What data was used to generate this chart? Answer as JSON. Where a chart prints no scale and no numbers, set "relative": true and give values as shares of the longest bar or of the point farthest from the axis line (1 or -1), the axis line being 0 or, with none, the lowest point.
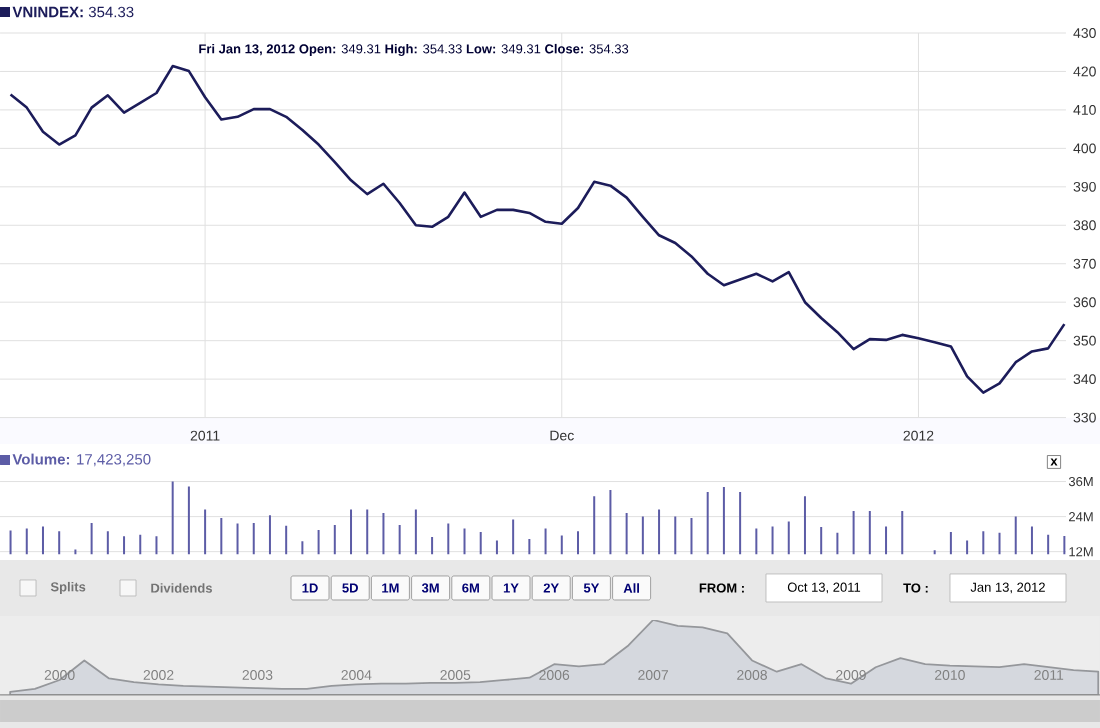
{
  "chart_data": [
    {
      "type": "line",
      "title": "**VNINDEX:** 354.33",
      "annotations": [
        "**Fri Jan 13, 2012**   **Open:**  349.31   **High:**  354.33   **Low:**  349.31   **Close:**  354.33"
      ],
      "categories": [
        null,
        null,
        null,
        null,
        null,
        null,
        null,
        null,
        null,
        null,
        null,
        null,
        "2011",
        null,
        null,
        null,
        null,
        null,
        null,
        null,
        null,
        null,
        null,
        null,
        null,
        null,
        null,
        null,
        null,
        null,
        null,
        null,
        null,
        null,
        "Dec",
        null,
        null,
        null,
        null,
        null,
        null,
        null,
        null,
        null,
        null,
        null,
        null,
        null,
        null,
        null,
        null,
        null,
        null,
        null,
        null,
        null,
        "2012",
        null,
        null,
        null,
        null,
        null,
        null,
        null,
        null,
        null
      ],
      "values": [
        414,
        410.6,
        404.3,
        401,
        403.4,
        410.6,
        413.8,
        409.3,
        411.8,
        414.4,
        421.4,
        420.1,
        413.3,
        407.5,
        408.2,
        410.2,
        410.2,
        408.2,
        404.8,
        401,
        396.4,
        391.7,
        388.1,
        390.8,
        385.8,
        380,
        379.6,
        382.2,
        388.5,
        382.2,
        384,
        384,
        383.2,
        380.9,
        380.4,
        384.5,
        391.3,
        390.3,
        387.2,
        382.2,
        377.4,
        375.4,
        371.9,
        367.4,
        364.4,
        365.9,
        367.4,
        365.4,
        367.8,
        360,
        355.9,
        352.2,
        347.8,
        350.4,
        350.2,
        351.5,
        350.6,
        349.6,
        348.5,
        340.7,
        336.5,
        338.9,
        344.4,
        347.2,
        348,
        354.3
      ],
      "color": "#1c1c5a",
      "ylim": [
        330,
        430
      ],
      "yticks": [
        330,
        340,
        350,
        360,
        370,
        380,
        390,
        400,
        410,
        420,
        430
      ],
      "grid": true
    },
    {
      "type": "bar",
      "title": "**Volume:** 17,423,250",
      "annotations": [
        "x"
      ],
      "categories": [
        null,
        null,
        null,
        null,
        null,
        null,
        null,
        null,
        null,
        null,
        null,
        null,
        null,
        null,
        null,
        null,
        null,
        null,
        null,
        null,
        null,
        null,
        null,
        null,
        null,
        null,
        null,
        null,
        null,
        null,
        null,
        null,
        null,
        null,
        null,
        null,
        null,
        null,
        null,
        null,
        null,
        null,
        null,
        null,
        null,
        null,
        null,
        null,
        null,
        null,
        null,
        null,
        null,
        null,
        null,
        null,
        null,
        null,
        null,
        null,
        null,
        null,
        null,
        null,
        null,
        null
      ],
      "values": [
        19.2,
        19.9,
        20.6,
        19.0,
        12.7,
        21.8,
        19.0,
        17.3,
        17.8,
        17.3,
        36.0,
        34.3,
        26.4,
        23.5,
        21.6,
        21.8,
        24.5,
        20.9,
        15.6,
        19.4,
        21.1,
        26.4,
        26.4,
        25.2,
        21.1,
        26.4,
        17.0,
        21.6,
        19.9,
        18.7,
        15.8,
        23.0,
        16.3,
        19.9,
        17.5,
        19.0,
        31.0,
        33.1,
        25.2,
        24.0,
        26.4,
        24.0,
        23.5,
        32.4,
        34.1,
        32.4,
        19.9,
        20.6,
        22.3,
        31.0,
        20.4,
        18.5,
        25.9,
        25.9,
        20.6,
        25.9,
        null,
        12.5,
        18.7,
        15.8,
        19.0,
        18.5,
        24.0,
        20.6,
        17.8,
        17.4
      ],
      "color": "#5c5ca6",
      "ylim": [
        11,
        37.5
      ],
      "yticks": [
        {
          "value": 12,
          "label": "12M"
        },
        {
          "value": 24,
          "label": "24M"
        },
        {
          "value": 36,
          "label": "36M"
        }
      ],
      "grid": "y",
      "tick_labels": "y"
    },
    {
      "type": "area",
      "relative": true,
      "categories": [
        null,
        null,
        "2000",
        null,
        null,
        null,
        "2002",
        null,
        null,
        null,
        "2003",
        null,
        null,
        null,
        "2004",
        null,
        null,
        null,
        "2005",
        null,
        null,
        null,
        "2006",
        null,
        null,
        null,
        "2007",
        null,
        null,
        null,
        "2008",
        null,
        null,
        null,
        "2009",
        null,
        null,
        null,
        "2010",
        null,
        null,
        null,
        "2011",
        null,
        null
      ],
      "values": [
        0.04,
        0.08,
        0.2,
        0.46,
        0.22,
        0.17,
        0.14,
        0.12,
        0.11,
        0.1,
        0.09,
        0.08,
        0.08,
        0.12,
        0.14,
        0.15,
        0.15,
        0.16,
        0.16,
        0.17,
        0.2,
        0.23,
        0.41,
        0.38,
        0.41,
        0.66,
        1,
        0.92,
        0.9,
        0.82,
        0.46,
        0.31,
        0.41,
        0.22,
        0.15,
        0.37,
        0.49,
        0.41,
        0.39,
        0.38,
        0.37,
        0.41,
        0.37,
        0.33,
        0.31
      ],
      "color": "#d5d8de",
      "tick_labels": "x"
    },
    {
      "type": "other",
      "annotations": [
        "Splits",
        "Dividends",
        "1D",
        "5D",
        "1M",
        "3M",
        "6M",
        "1Y",
        "2Y",
        "5Y",
        "All",
        "FROM :",
        "Oct 13, 2011",
        "TO :",
        "Jan 13, 2012"
      ]
    }
  ]
}
